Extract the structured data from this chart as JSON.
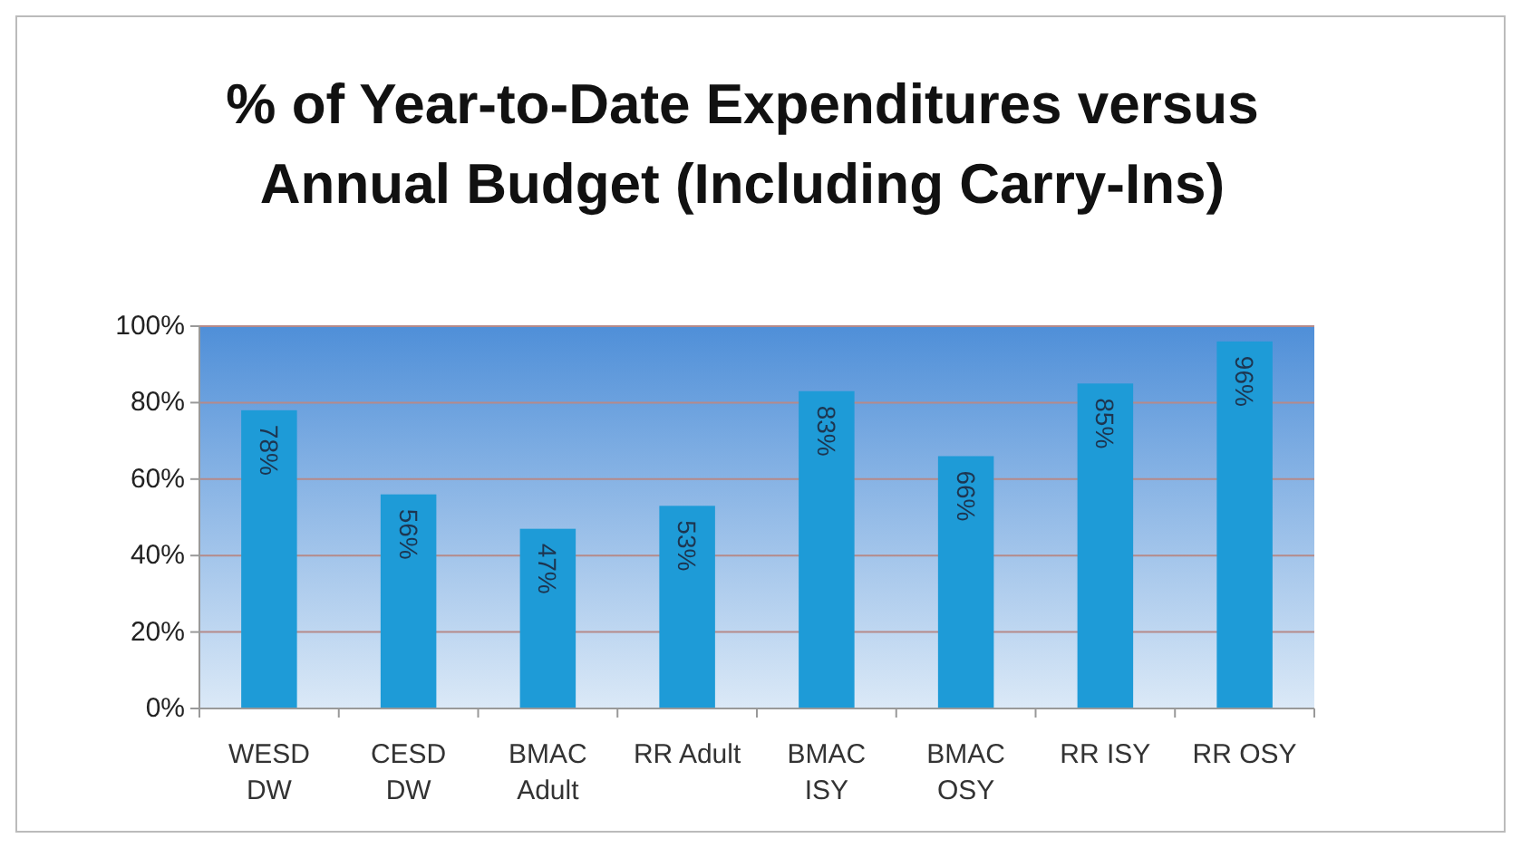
{
  "chart_data": {
    "type": "bar",
    "title": "% of Year-to-Date Expenditures versus Annual Budget (Including Carry-Ins)",
    "categories": [
      "WESD DW",
      "CESD DW",
      "BMAC Adult",
      "RR Adult",
      "BMAC ISY",
      "BMAC OSY",
      "RR ISY",
      "RR OSY"
    ],
    "values": [
      78,
      56,
      47,
      53,
      83,
      66,
      85,
      96
    ],
    "value_labels": [
      "78%",
      "56%",
      "47%",
      "53%",
      "83%",
      "66%",
      "85%",
      "96%"
    ],
    "color": "#1e9bd7",
    "ylim": [
      0,
      100
    ],
    "yticks": [
      {
        "value": 0,
        "label": "0%"
      },
      {
        "value": 20,
        "label": "20%"
      },
      {
        "value": 40,
        "label": "40%"
      },
      {
        "value": 60,
        "label": "60%"
      },
      {
        "value": 80,
        "label": "80%"
      },
      {
        "value": 100,
        "label": "100%"
      }
    ],
    "grid": "y"
  }
}
